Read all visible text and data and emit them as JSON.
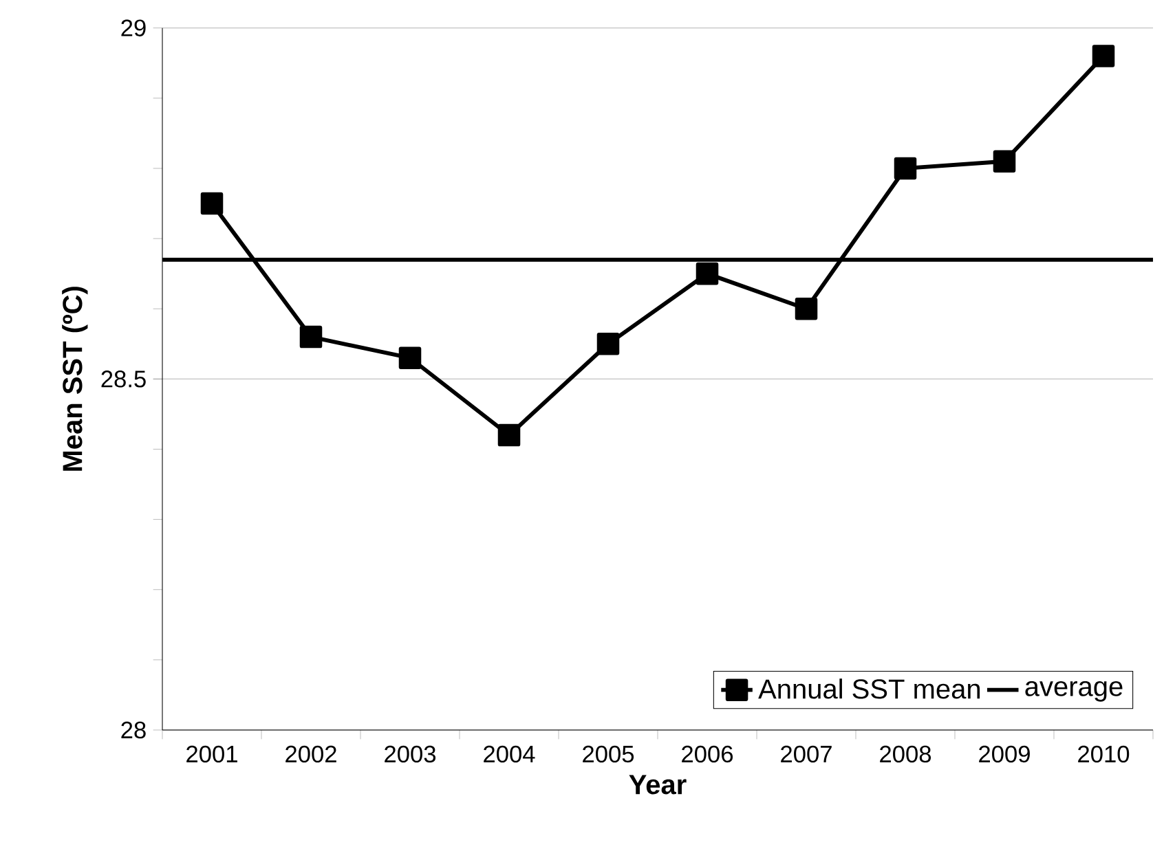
{
  "chart_data": {
    "type": "line",
    "xlabel": "Year",
    "ylabel": "Mean SST (ºC)",
    "categories": [
      "2001",
      "2002",
      "2003",
      "2004",
      "2005",
      "2006",
      "2007",
      "2008",
      "2009",
      "2010"
    ],
    "series": [
      {
        "name": "Annual SST mean",
        "color": "#000000",
        "values": [
          28.75,
          28.56,
          28.53,
          28.42,
          28.55,
          28.65,
          28.6,
          28.8,
          28.81,
          28.96
        ]
      }
    ],
    "ref_lines": [
      {
        "axis": "y",
        "value": 28.67,
        "label": "average",
        "color": "#000000"
      }
    ],
    "ylim": [
      28,
      29
    ],
    "yticks": [
      28,
      28.5,
      29
    ],
    "grid": "y",
    "legend": "bottom right",
    "marker": "square",
    "line_style": "solid"
  }
}
